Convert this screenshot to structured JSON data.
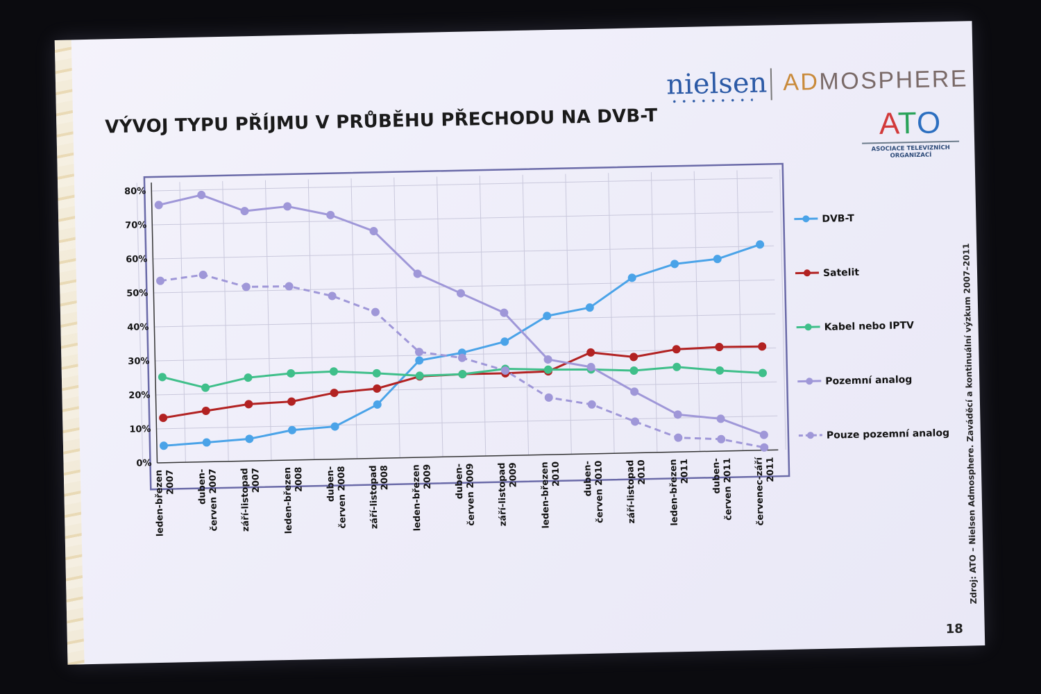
{
  "slide": {
    "title": "VÝVOJ TYPU PŘÍJMU V PRŮBĚHU PŘECHODU NA DVB-T",
    "page_number": "18",
    "source_note": "Zdroj: ATO – Nielsen Admosphere. Zaváděcí a kontinuální výzkum 2007–2011"
  },
  "logos": {
    "nielsen": "nielsen",
    "admosphere_ad": "AD",
    "admosphere_rest": "MOSPHERE",
    "ato_a": "A",
    "ato_t": "T",
    "ato_o": "O",
    "ato_subtitle_line1": "ASOCIACE TELEVIZNÍCH",
    "ato_subtitle_line2": "ORGANIZACÍ"
  },
  "chart_data": {
    "type": "line",
    "title": "",
    "xlabel": "",
    "ylabel": "",
    "ylim": [
      0,
      80
    ],
    "yticks": [
      "0%",
      "10%",
      "20%",
      "30%",
      "40%",
      "50%",
      "60%",
      "70%",
      "80%"
    ],
    "grid": true,
    "legend_position": "right",
    "categories": [
      [
        "leden-březen",
        "2007"
      ],
      [
        "duben-",
        "červen 2007"
      ],
      [
        "září-listopad",
        "2007"
      ],
      [
        "leden-březen",
        "2008"
      ],
      [
        "duben-",
        "červen 2008"
      ],
      [
        "září-listopad",
        "2008"
      ],
      [
        "leden-březen",
        "2009"
      ],
      [
        "duben-",
        "červen 2009"
      ],
      [
        "září-listopad",
        "2009"
      ],
      [
        "leden-březen",
        "2010"
      ],
      [
        "duben-",
        "červen 2010"
      ],
      [
        "září-listopad",
        "2010"
      ],
      [
        "leden-březen",
        "2011"
      ],
      [
        "duben-",
        "červen 2011"
      ],
      [
        "červenec-září",
        "2011"
      ]
    ],
    "series": [
      {
        "name": "DVB-T",
        "color": "#4aa3e8",
        "dashed": false,
        "values": [
          5,
          5.7,
          6.5,
          8.8,
          9.6,
          15.8,
          28.5,
          30.5,
          33.5,
          40.8,
          43,
          51.5,
          55.3,
          56.5,
          60.5
        ]
      },
      {
        "name": "Satelit",
        "color": "#b22222",
        "dashed": false,
        "values": [
          13.2,
          15,
          16.7,
          17.2,
          19.5,
          20.5,
          23.8,
          24.2,
          24.2,
          24.5,
          29.8,
          28.2,
          30.2,
          30.6,
          30.5
        ]
      },
      {
        "name": "Kabel nebo IPTV",
        "color": "#3fbf8a",
        "dashed": false,
        "values": [
          25.2,
          21.8,
          24.5,
          25.5,
          25.8,
          25,
          24,
          24.2,
          25.5,
          25,
          24.8,
          24.2,
          25,
          23.7,
          22.7
        ]
      },
      {
        "name": "Pozemní analog",
        "color": "#9f97d8",
        "dashed": false,
        "values": [
          75.8,
          78.5,
          73.5,
          74.6,
          71.8,
          66.8,
          54,
          48,
          42,
          28,
          25.5,
          18,
          11,
          9.5,
          4.5
        ]
      },
      {
        "name": "Pouze pozemní analog",
        "color": "#9f97d8",
        "dashed": true,
        "values": [
          53.5,
          55,
          51.2,
          51.1,
          48,
          43,
          31,
          29,
          25,
          16.8,
          14.5,
          9.2,
          4.2,
          3.5,
          0.8
        ]
      }
    ]
  }
}
